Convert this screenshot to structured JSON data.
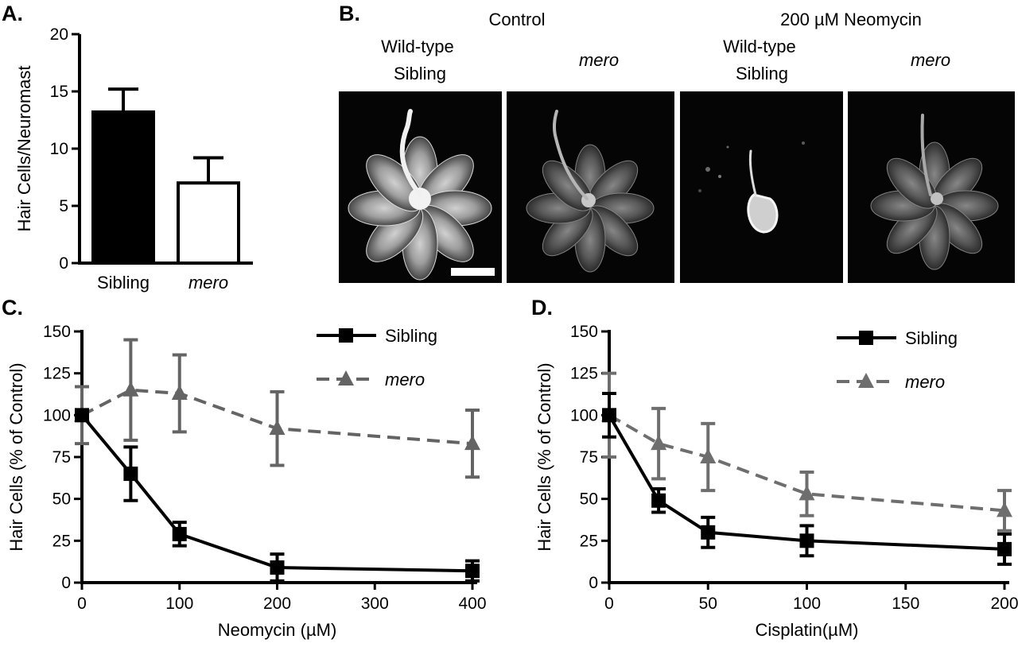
{
  "panel_labels": {
    "a": "A.",
    "b": "B.",
    "c": "C.",
    "d": "D."
  },
  "panel_b": {
    "group_labels": [
      "Control",
      "200 µM Neomycin"
    ],
    "images": [
      {
        "label_lines": [
          "Wild-type",
          "Sibling"
        ],
        "italic": false
      },
      {
        "label_lines": [
          "mero"
        ],
        "italic": true
      },
      {
        "label_lines": [
          "Wild-type",
          "Sibling"
        ],
        "italic": false
      },
      {
        "label_lines": [
          "mero"
        ],
        "italic": true
      }
    ]
  },
  "chart_data": [
    {
      "id": "A",
      "type": "bar",
      "title": "",
      "xlabel": "",
      "ylabel": "Hair Cells/Neuromast",
      "categories": [
        "Sibling",
        "mero"
      ],
      "category_italic": [
        false,
        true
      ],
      "values": [
        13.2,
        7.0
      ],
      "errors": [
        2.0,
        2.2
      ],
      "fills": [
        "#000000",
        "#ffffff"
      ],
      "ylim": [
        0,
        20
      ],
      "yticks": [
        0,
        5,
        10,
        15,
        20
      ],
      "grid": false
    },
    {
      "id": "C",
      "type": "line",
      "title": "",
      "xlabel": "Neomycin (µM)",
      "ylabel": "Hair Cells (% of Control)",
      "xlim": [
        0,
        400
      ],
      "ylim": [
        0,
        150
      ],
      "xticks": [
        0,
        100,
        200,
        300,
        400
      ],
      "yticks": [
        0,
        25,
        50,
        75,
        100,
        125,
        150
      ],
      "grid": false,
      "legend": "top-right",
      "series": [
        {
          "name": "Sibling",
          "italic": false,
          "color": "#000000",
          "dash": false,
          "marker": "square",
          "x": [
            0,
            50,
            100,
            200,
            400
          ],
          "y": [
            100,
            65,
            29,
            9,
            7
          ],
          "err": [
            1,
            16,
            7,
            8,
            6
          ]
        },
        {
          "name": "mero",
          "italic": true,
          "color": "#646464",
          "dash": true,
          "marker": "triangle",
          "x": [
            0,
            50,
            100,
            200,
            400
          ],
          "y": [
            100,
            115,
            113,
            92,
            83
          ],
          "err": [
            17,
            30,
            23,
            22,
            20
          ]
        }
      ]
    },
    {
      "id": "D",
      "type": "line",
      "title": "",
      "xlabel": "Cisplatin(µM)",
      "ylabel": "Hair Cells (% of Control)",
      "xlim": [
        0,
        200
      ],
      "ylim": [
        0,
        150
      ],
      "xticks": [
        0,
        50,
        100,
        150,
        200
      ],
      "yticks": [
        0,
        25,
        50,
        75,
        100,
        125,
        150
      ],
      "grid": false,
      "legend": "top-right",
      "series": [
        {
          "name": "Sibling",
          "italic": false,
          "color": "#000000",
          "dash": false,
          "marker": "square",
          "x": [
            0,
            25,
            50,
            100,
            200
          ],
          "y": [
            100,
            49,
            30,
            25,
            20
          ],
          "err": [
            13,
            7,
            9,
            9,
            9
          ]
        },
        {
          "name": "mero",
          "italic": true,
          "color": "#6e6e6e",
          "dash": true,
          "marker": "triangle",
          "x": [
            0,
            25,
            50,
            100,
            200
          ],
          "y": [
            100,
            83,
            75,
            53,
            43
          ],
          "err": [
            25,
            21,
            20,
            13,
            12
          ]
        }
      ]
    }
  ]
}
